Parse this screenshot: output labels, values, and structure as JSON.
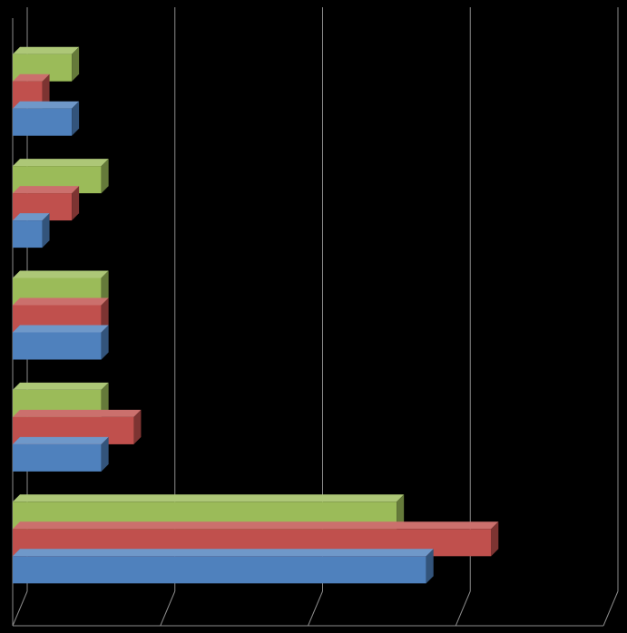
{
  "chart_data": {
    "type": "bar",
    "orientation": "horizontal",
    "style": "3d-clustered",
    "categories": [
      "",
      "",
      "",
      "",
      ""
    ],
    "series": [
      {
        "values": [
          2.0,
          1.0,
          3.0,
          3.0,
          14.0
        ],
        "color": "#4f81bd"
      },
      {
        "values": [
          1.0,
          2.0,
          3.0,
          4.1,
          16.2
        ],
        "color": "#c0504d"
      },
      {
        "values": [
          2.0,
          3.0,
          3.0,
          3.0,
          13.0
        ],
        "color": "#9bbb59"
      }
    ],
    "xlim": [
      0,
      20
    ],
    "grid": true,
    "legend": "none",
    "title": "",
    "xlabel": "",
    "ylabel": "",
    "background": "#000000",
    "gridline_color": "#8c8c8c"
  }
}
